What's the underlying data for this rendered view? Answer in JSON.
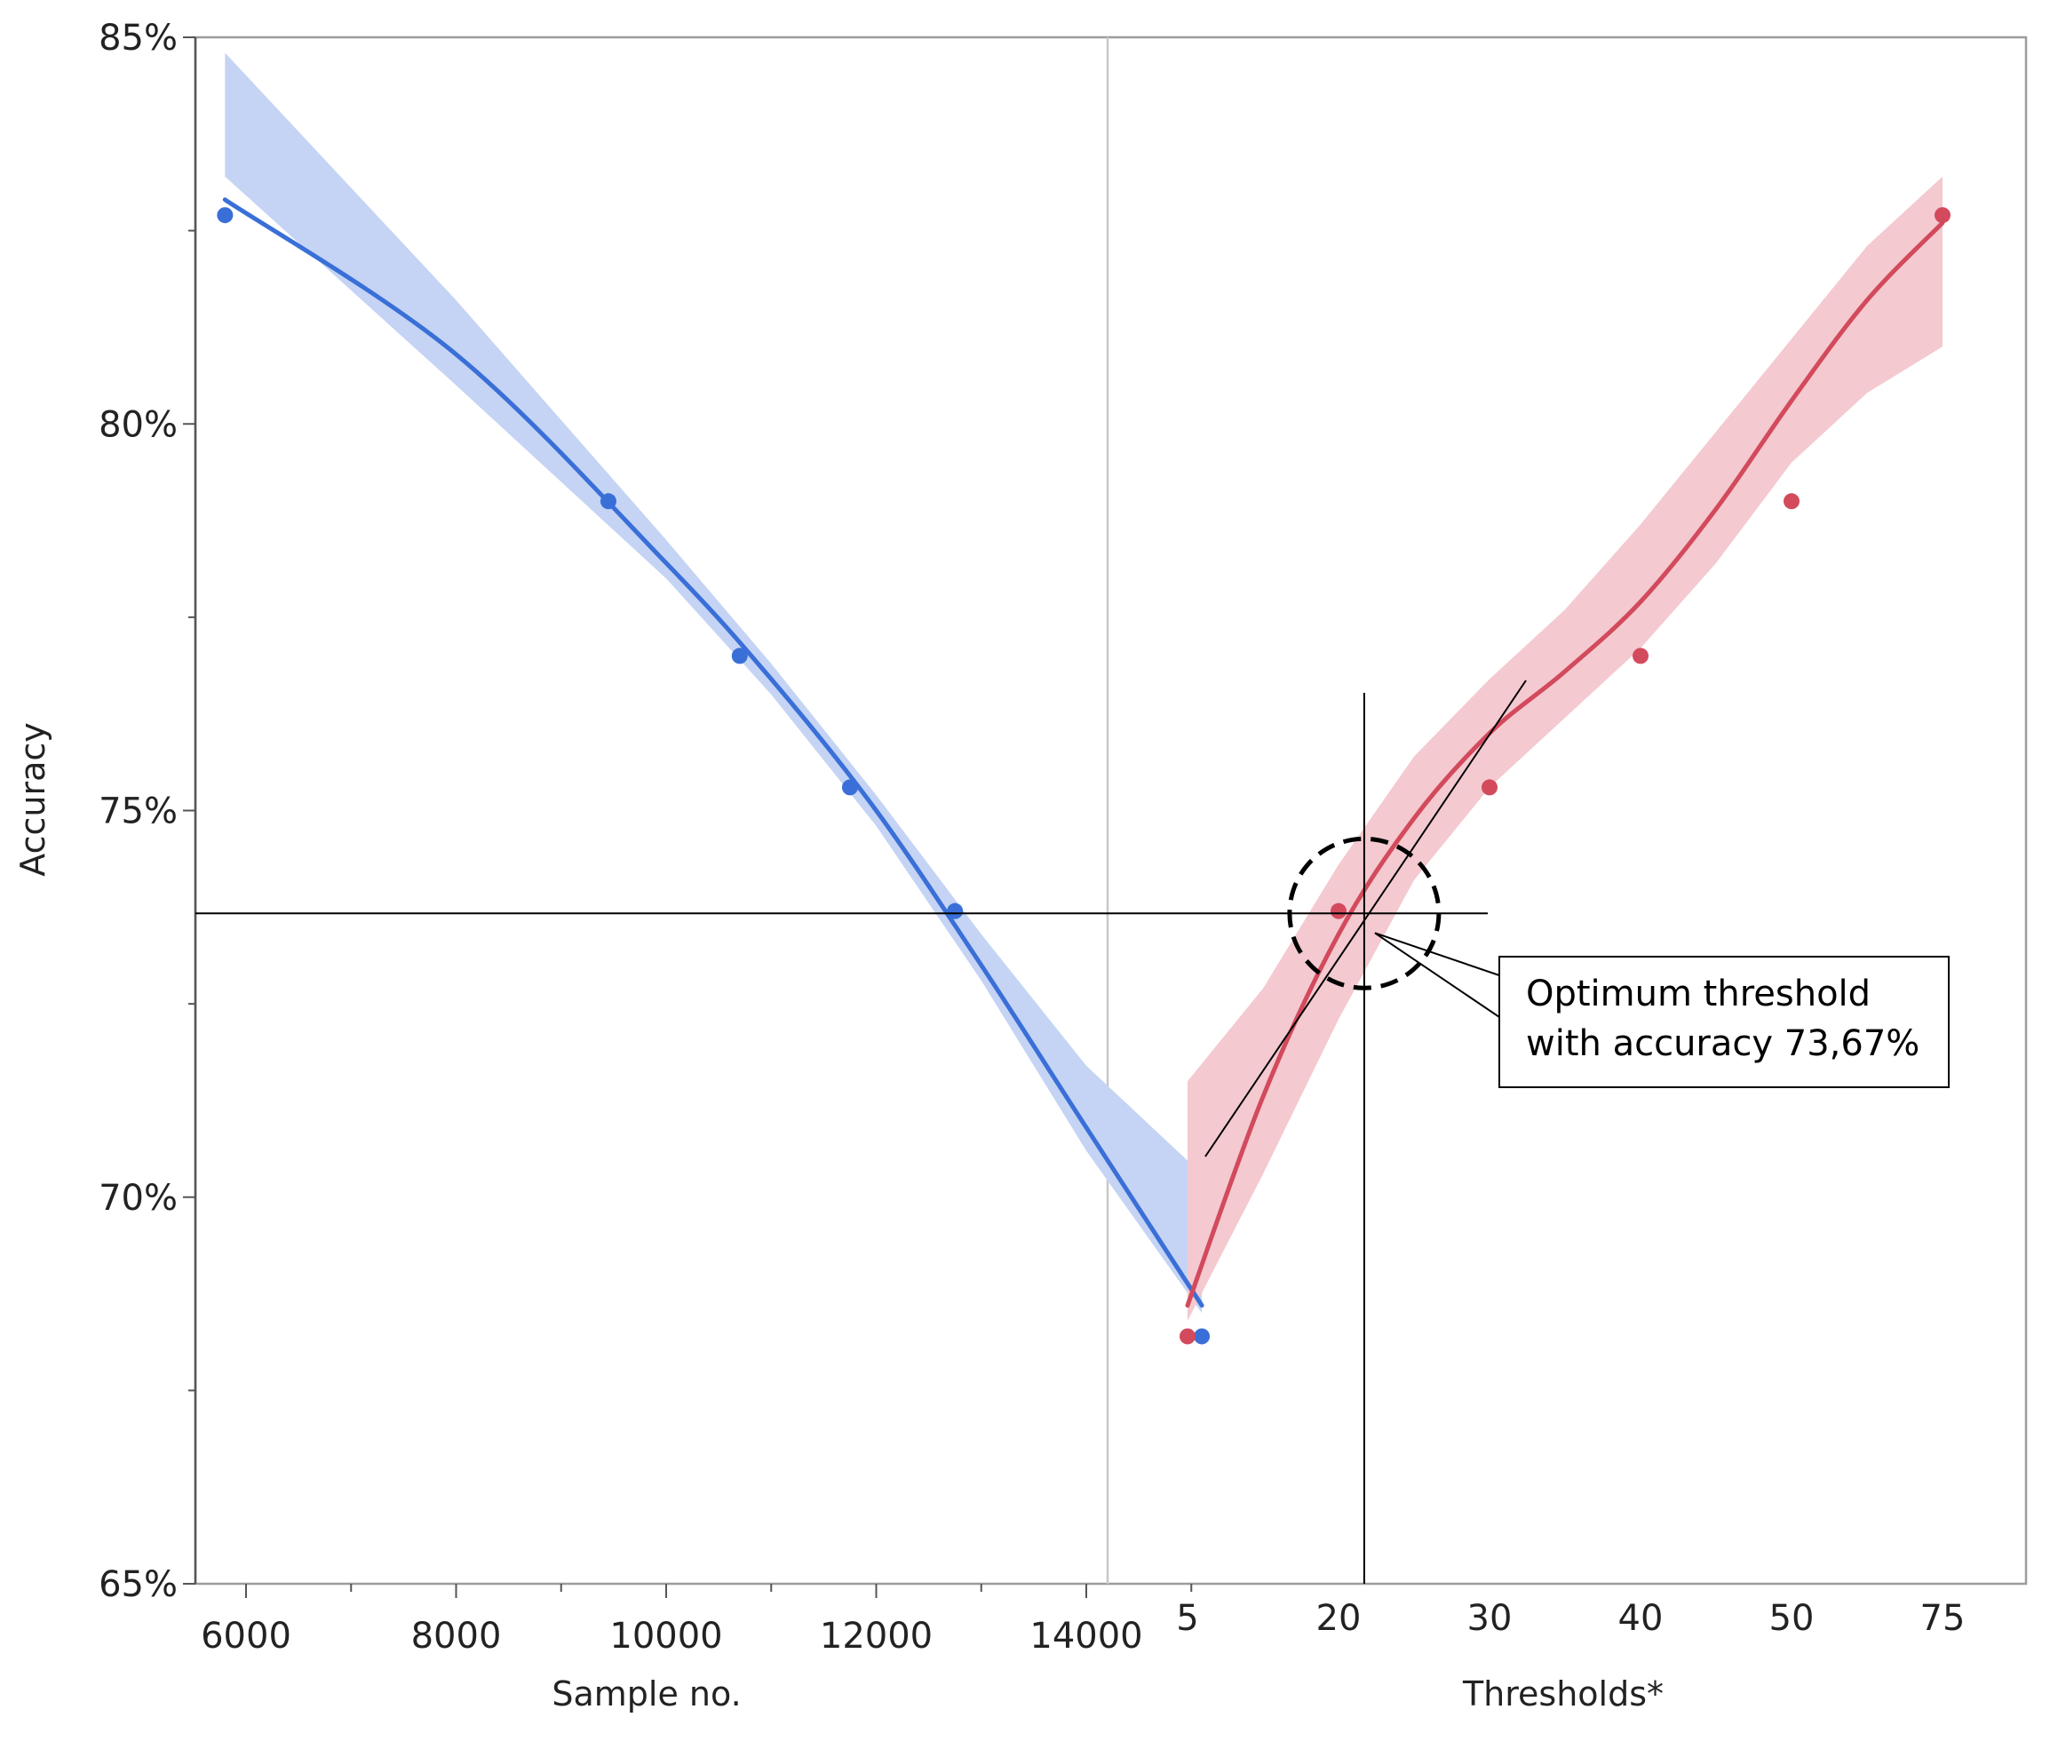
{
  "chart_data": {
    "type": "line",
    "ylabel": "Accuracy",
    "ylim": [
      65,
      85
    ],
    "y_ticks": [
      "65%",
      "70%",
      "75%",
      "80%",
      "85%"
    ],
    "grid": false,
    "panels": [
      {
        "xlabel": "Sample no.",
        "x_ticks": [
          "6000",
          "8000",
          "10000",
          "12000",
          "14000"
        ],
        "xlim": [
          5500,
          15600
        ],
        "color": "#3a6fd8",
        "band_color": "#c5d4f4",
        "points": [
          {
            "x": 5800,
            "y": 82.7
          },
          {
            "x": 9450,
            "y": 79.0
          },
          {
            "x": 10700,
            "y": 77.0
          },
          {
            "x": 11750,
            "y": 75.3
          },
          {
            "x": 12750,
            "y": 73.7
          },
          {
            "x": 15100,
            "y": 68.2
          }
        ],
        "fit": [
          {
            "x": 5800,
            "y": 82.9
          },
          {
            "x": 8000,
            "y": 80.9
          },
          {
            "x": 10000,
            "y": 78.2
          },
          {
            "x": 11000,
            "y": 76.7
          },
          {
            "x": 12000,
            "y": 75.0
          },
          {
            "x": 13000,
            "y": 73.0
          },
          {
            "x": 14000,
            "y": 70.9
          },
          {
            "x": 15100,
            "y": 68.6
          }
        ],
        "band_upper": [
          {
            "x": 5800,
            "y": 84.8
          },
          {
            "x": 8000,
            "y": 81.6
          },
          {
            "x": 10000,
            "y": 78.5
          },
          {
            "x": 11000,
            "y": 76.9
          },
          {
            "x": 12000,
            "y": 75.2
          },
          {
            "x": 13000,
            "y": 73.4
          },
          {
            "x": 14000,
            "y": 71.7
          },
          {
            "x": 15100,
            "y": 70.3
          }
        ],
        "band_lower": [
          {
            "x": 5800,
            "y": 83.2
          },
          {
            "x": 8000,
            "y": 80.5
          },
          {
            "x": 10000,
            "y": 78.0
          },
          {
            "x": 11000,
            "y": 76.5
          },
          {
            "x": 12000,
            "y": 74.8
          },
          {
            "x": 13000,
            "y": 72.8
          },
          {
            "x": 14000,
            "y": 70.6
          },
          {
            "x": 15100,
            "y": 68.5
          }
        ]
      },
      {
        "xlabel": "Thresholds*",
        "x_ticks": [
          "5",
          "20",
          "30",
          "40",
          "50",
          "75"
        ],
        "color": "#d24a5c",
        "band_color": "#f4c9d0",
        "points": [
          {
            "x": "5",
            "y": 68.2
          },
          {
            "x": "20",
            "y": 73.7
          },
          {
            "x": "30",
            "y": 75.3
          },
          {
            "x": "40",
            "y": 77.0
          },
          {
            "x": "50",
            "y": 79.0
          },
          {
            "x": "75",
            "y": 82.7
          }
        ],
        "fit": [
          {
            "x": 0,
            "y": 68.6
          },
          {
            "x": 0.5,
            "y": 71.3
          },
          {
            "x": 1,
            "y": 73.4
          },
          {
            "x": 1.5,
            "y": 74.9
          },
          {
            "x": 2,
            "y": 76.0
          },
          {
            "x": 2.5,
            "y": 76.8
          },
          {
            "x": 3,
            "y": 77.7
          },
          {
            "x": 3.5,
            "y": 78.9
          },
          {
            "x": 4,
            "y": 80.3
          },
          {
            "x": 4.5,
            "y": 81.6
          },
          {
            "x": 5,
            "y": 82.6
          }
        ],
        "band_upper": [
          {
            "x": 0,
            "y": 71.5
          },
          {
            "x": 0.5,
            "y": 72.7
          },
          {
            "x": 1,
            "y": 74.3
          },
          {
            "x": 1.5,
            "y": 75.7
          },
          {
            "x": 2,
            "y": 76.7
          },
          {
            "x": 2.5,
            "y": 77.6
          },
          {
            "x": 3,
            "y": 78.7
          },
          {
            "x": 3.5,
            "y": 79.9
          },
          {
            "x": 4,
            "y": 81.1
          },
          {
            "x": 4.5,
            "y": 82.3
          },
          {
            "x": 5,
            "y": 83.2
          }
        ],
        "band_lower": [
          {
            "x": 0,
            "y": 68.4
          },
          {
            "x": 0.5,
            "y": 70.3
          },
          {
            "x": 1,
            "y": 72.3
          },
          {
            "x": 1.5,
            "y": 74.1
          },
          {
            "x": 2,
            "y": 75.3
          },
          {
            "x": 2.5,
            "y": 76.2
          },
          {
            "x": 3,
            "y": 77.1
          },
          {
            "x": 3.5,
            "y": 78.2
          },
          {
            "x": 4,
            "y": 79.5
          },
          {
            "x": 4.5,
            "y": 80.4
          },
          {
            "x": 5,
            "y": 81.0
          }
        ]
      }
    ],
    "crosshair": {
      "y": 73.67,
      "x_index": 1.17
    },
    "annotation": {
      "lines": [
        "Optimum threshold",
        "with accuracy 73,67%"
      ]
    }
  }
}
